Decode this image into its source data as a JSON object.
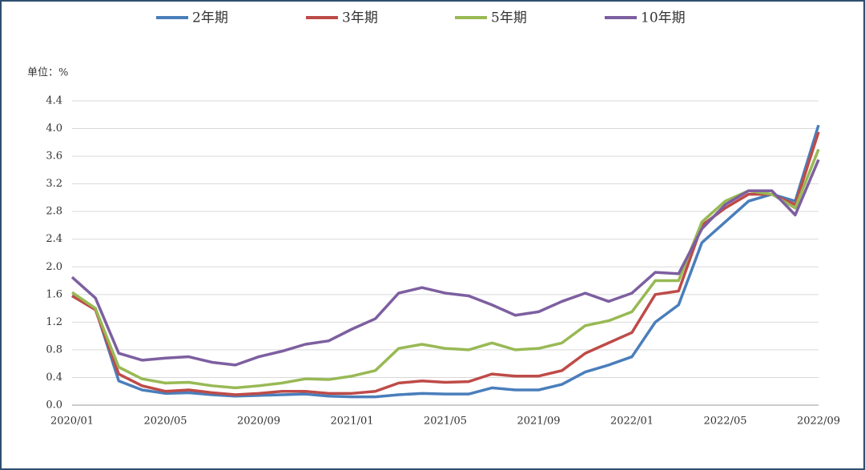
{
  "chart_data": {
    "type": "line",
    "y_label": "单位：%",
    "categories": [
      "2020/01",
      null,
      null,
      null,
      "2020/05",
      null,
      null,
      null,
      "2020/09",
      null,
      null,
      null,
      "2021/01",
      null,
      null,
      null,
      "2021/05",
      null,
      null,
      null,
      "2021/09",
      null,
      null,
      null,
      "2022/01",
      null,
      null,
      null,
      "2022/05",
      null,
      null,
      null,
      "2022/09"
    ],
    "series": [
      {
        "name": "2年期",
        "color": "#4a7ebb",
        "values": [
          1.58,
          1.4,
          0.35,
          0.22,
          0.17,
          0.18,
          0.15,
          0.13,
          0.14,
          0.15,
          0.16,
          0.13,
          0.12,
          0.12,
          0.15,
          0.17,
          0.16,
          0.16,
          0.25,
          0.22,
          0.22,
          0.3,
          0.48,
          0.58,
          0.7,
          1.2,
          1.45,
          2.35,
          2.65,
          2.95,
          3.05,
          2.95,
          4.05
        ]
      },
      {
        "name": "3年期",
        "color": "#be4b48",
        "values": [
          1.58,
          1.38,
          0.45,
          0.28,
          0.2,
          0.22,
          0.18,
          0.15,
          0.17,
          0.2,
          0.2,
          0.17,
          0.17,
          0.2,
          0.32,
          0.35,
          0.33,
          0.34,
          0.45,
          0.42,
          0.42,
          0.5,
          0.75,
          0.9,
          1.05,
          1.6,
          1.65,
          2.6,
          2.85,
          3.05,
          3.05,
          2.9,
          3.95
        ]
      },
      {
        "name": "5年期",
        "color": "#98b954",
        "values": [
          1.63,
          1.4,
          0.55,
          0.38,
          0.32,
          0.33,
          0.28,
          0.25,
          0.28,
          0.32,
          0.38,
          0.37,
          0.42,
          0.5,
          0.82,
          0.88,
          0.82,
          0.8,
          0.9,
          0.8,
          0.82,
          0.9,
          1.15,
          1.22,
          1.35,
          1.8,
          1.8,
          2.65,
          2.95,
          3.1,
          3.05,
          2.85,
          3.7
        ]
      },
      {
        "name": "10年期",
        "color": "#7d5fa0",
        "values": [
          1.85,
          1.55,
          0.75,
          0.65,
          0.68,
          0.7,
          0.62,
          0.58,
          0.7,
          0.78,
          0.88,
          0.93,
          1.1,
          1.25,
          1.62,
          1.7,
          1.62,
          1.58,
          1.45,
          1.3,
          1.35,
          1.5,
          1.62,
          1.5,
          1.62,
          1.92,
          1.9,
          2.55,
          2.9,
          3.1,
          3.1,
          2.75,
          3.55
        ]
      }
    ],
    "ylim": [
      0,
      4.4
    ],
    "yticks": [
      {
        "value": 0,
        "label": "0.0"
      },
      0.4,
      0.8,
      1.2,
      1.6,
      {
        "value": 2,
        "label": "2.0"
      },
      2.4,
      2.8,
      3.2,
      3.6,
      {
        "value": 4,
        "label": "4.0"
      },
      4.4
    ],
    "grid": true
  }
}
